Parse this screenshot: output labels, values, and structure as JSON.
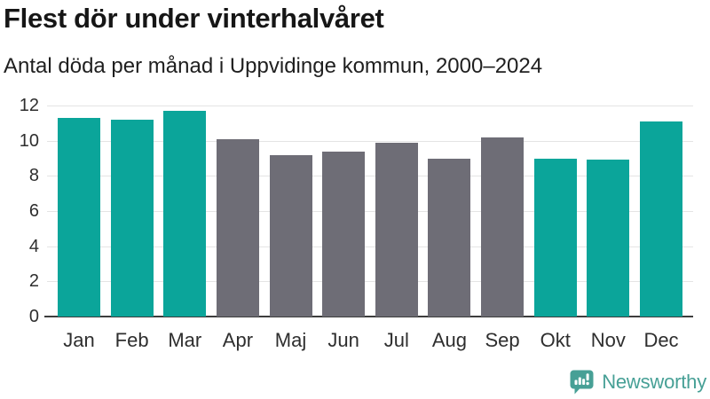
{
  "chart_data": {
    "type": "bar",
    "title": "Flest dör under vinterhalvåret",
    "subtitle": "Antal döda per månad i Uppvidinge kommun, 2000–2024",
    "categories": [
      "Jan",
      "Feb",
      "Mar",
      "Apr",
      "Maj",
      "Jun",
      "Jul",
      "Aug",
      "Sep",
      "Okt",
      "Nov",
      "Dec"
    ],
    "values": [
      11.3,
      11.2,
      11.7,
      10.1,
      9.2,
      9.4,
      9.9,
      9.0,
      10.2,
      9.0,
      8.9,
      11.1
    ],
    "highlighted": [
      true,
      true,
      true,
      false,
      false,
      false,
      false,
      false,
      false,
      true,
      true,
      true
    ],
    "colors": {
      "highlight": "#0ba59a",
      "default": "#6e6d76",
      "gridline": "#e4e4e4",
      "axis": "#3d3d3d"
    },
    "xlabel": "",
    "ylabel": "",
    "ylim": [
      0,
      12
    ],
    "yticks": [
      0,
      2,
      4,
      6,
      8,
      10,
      12
    ],
    "grid": true,
    "legend": false
  },
  "footer": {
    "brand": "Newsworthy",
    "brand_color": "#47a096",
    "logo_icon": "bar-chart-speech-bubble-icon"
  }
}
